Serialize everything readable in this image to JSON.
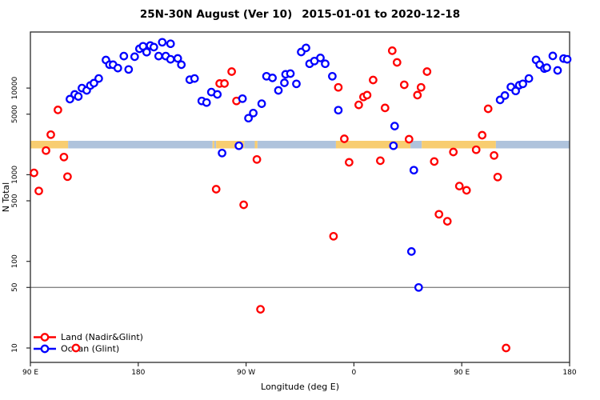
{
  "title": {
    "main": "25N-30N August (Ver 10)",
    "range": "2015-01-01 to 2020-12-18"
  },
  "colors": {
    "land_series": "#ff0000",
    "ocean_series": "#0000ff",
    "band_land": "#f8cd70",
    "band_ocean": "#afc3dc",
    "reference_line": "#858585",
    "box": "#2a2a2a",
    "background": "#ffffff",
    "point_fill": "#ffffff"
  },
  "chart_data": {
    "type": "scatter",
    "title": "25N-30N August (Ver 10)   2015-01-01 to 2020-12-18",
    "xlabel": "Longitude (deg E)",
    "ylabel": "N Total",
    "x_axis": {
      "range": [
        90,
        540
      ],
      "note": "longitude wraps eastward from 90E through 180, 90W, 0, 90E to 180",
      "ticks": [
        {
          "value": 90,
          "label": "90 E"
        },
        {
          "value": 180,
          "label": "180"
        },
        {
          "value": 270,
          "label": "90 W"
        },
        {
          "value": 360,
          "label": "0"
        },
        {
          "value": 450,
          "label": "90 E"
        },
        {
          "value": 540,
          "label": "180"
        }
      ]
    },
    "y_axis": {
      "scale": "log10",
      "range": [
        10,
        44000
      ],
      "ticks": [
        {
          "value": 10,
          "label": "10"
        },
        {
          "value": 50,
          "label": "50"
        },
        {
          "value": 100,
          "label": "100"
        },
        {
          "value": 500,
          "label": "500"
        },
        {
          "value": 1000,
          "label": "1000"
        },
        {
          "value": 5000,
          "label": "5000"
        },
        {
          "value": 10000,
          "label": "10000"
        }
      ]
    },
    "reference_line_value": 50,
    "land_ocean_band": {
      "n_range": [
        2030,
        2470
      ],
      "segments": [
        {
          "from": 90,
          "to": 121.5,
          "type": "land"
        },
        {
          "from": 121.5,
          "to": 242,
          "type": "ocean"
        },
        {
          "from": 242,
          "to": 243.5,
          "type": "land"
        },
        {
          "from": 243.5,
          "to": 245,
          "type": "ocean"
        },
        {
          "from": 245,
          "to": 268.5,
          "type": "land"
        },
        {
          "from": 268.5,
          "to": 277.3,
          "type": "ocean"
        },
        {
          "from": 277.3,
          "to": 279.5,
          "type": "land"
        },
        {
          "from": 279.5,
          "to": 345,
          "type": "ocean"
        },
        {
          "from": 345,
          "to": 407.2,
          "type": "land"
        },
        {
          "from": 407.2,
          "to": 416.6,
          "type": "ocean"
        },
        {
          "from": 416.6,
          "to": 478.5,
          "type": "land"
        },
        {
          "from": 478.5,
          "to": 540,
          "type": "ocean"
        }
      ]
    },
    "legend": {
      "position": "bottom-left",
      "items": [
        {
          "label": "Land (Nadir&Glint)",
          "color_key": "land_series"
        },
        {
          "label": "Ocean (Glint)",
          "color_key": "ocean_series"
        }
      ]
    },
    "series": [
      {
        "name": "Land (Nadir&Glint)",
        "color_key": "land_series",
        "points": [
          [
            113,
            5600
          ],
          [
            107,
            2900
          ],
          [
            103,
            1900
          ],
          [
            118,
            1600
          ],
          [
            93,
            1050
          ],
          [
            121,
            950
          ],
          [
            97,
            650
          ],
          [
            128,
            10
          ],
          [
            245,
            680
          ],
          [
            268,
            450
          ],
          [
            258,
            15500
          ],
          [
            248,
            11300
          ],
          [
            252,
            11300
          ],
          [
            262,
            7100
          ],
          [
            279,
            1500
          ],
          [
            282,
            28
          ],
          [
            347,
            10200
          ],
          [
            364,
            6400
          ],
          [
            368,
            7900
          ],
          [
            371,
            8300
          ],
          [
            376,
            12400
          ],
          [
            386,
            5900
          ],
          [
            392,
            27000
          ],
          [
            396,
            19800
          ],
          [
            402,
            10900
          ],
          [
            413,
            8300
          ],
          [
            416,
            10200
          ],
          [
            421,
            15500
          ],
          [
            352,
            2600
          ],
          [
            406,
            2570
          ],
          [
            356,
            1390
          ],
          [
            382,
            1450
          ],
          [
            427,
            1420
          ],
          [
            472,
            5760
          ],
          [
            467,
            2860
          ],
          [
            443,
            1830
          ],
          [
            462,
            1940
          ],
          [
            477,
            1670
          ],
          [
            480,
            940
          ],
          [
            448,
            740
          ],
          [
            454,
            660
          ],
          [
            431,
            350
          ],
          [
            438,
            290
          ],
          [
            343,
            195
          ],
          [
            487,
            10
          ]
        ]
      },
      {
        "name": "Ocean (Glint)",
        "color_key": "ocean_series",
        "points": [
          [
            123,
            7450
          ],
          [
            127,
            8450
          ],
          [
            130,
            8000
          ],
          [
            133,
            10000
          ],
          [
            137,
            9400
          ],
          [
            140,
            10700
          ],
          [
            143,
            11400
          ],
          [
            147,
            12900
          ],
          [
            153,
            21100
          ],
          [
            156,
            18600
          ],
          [
            159,
            18600
          ],
          [
            163,
            17000
          ],
          [
            168,
            23400
          ],
          [
            172,
            16400
          ],
          [
            177,
            23000
          ],
          [
            181,
            28400
          ],
          [
            184,
            30400
          ],
          [
            187,
            26000
          ],
          [
            190,
            31000
          ],
          [
            193,
            29700
          ],
          [
            197,
            23400
          ],
          [
            200,
            33800
          ],
          [
            203,
            23400
          ],
          [
            207,
            21500
          ],
          [
            207,
            32500
          ],
          [
            213,
            22000
          ],
          [
            216,
            18600
          ],
          [
            223,
            12500
          ],
          [
            227,
            12900
          ],
          [
            233,
            7100
          ],
          [
            237,
            6800
          ],
          [
            241,
            9000
          ],
          [
            246,
            8450
          ],
          [
            267,
            7550
          ],
          [
            272,
            4500
          ],
          [
            276,
            5150
          ],
          [
            283,
            6600
          ],
          [
            287,
            13700
          ],
          [
            292,
            13100
          ],
          [
            297,
            9400
          ],
          [
            302,
            11500
          ],
          [
            303,
            14400
          ],
          [
            307,
            14700
          ],
          [
            312,
            11200
          ],
          [
            316,
            26100
          ],
          [
            320,
            29100
          ],
          [
            323,
            19100
          ],
          [
            327,
            20500
          ],
          [
            332,
            22300
          ],
          [
            336,
            19100
          ],
          [
            342,
            13700
          ],
          [
            347,
            5560
          ],
          [
            394,
            3640
          ],
          [
            393,
            2160
          ],
          [
            410,
            1130
          ],
          [
            408,
            130
          ],
          [
            414,
            50
          ],
          [
            250,
            1780
          ],
          [
            264,
            2160
          ],
          [
            482,
            7300
          ],
          [
            486,
            8200
          ],
          [
            491,
            10300
          ],
          [
            495,
            9260
          ],
          [
            498,
            10800
          ],
          [
            501,
            11200
          ],
          [
            506,
            12900
          ],
          [
            512,
            21200
          ],
          [
            515,
            18600
          ],
          [
            519,
            16800
          ],
          [
            521,
            17200
          ],
          [
            526,
            23500
          ],
          [
            530,
            16000
          ],
          [
            535,
            21900
          ],
          [
            538,
            21500
          ]
        ]
      }
    ]
  }
}
